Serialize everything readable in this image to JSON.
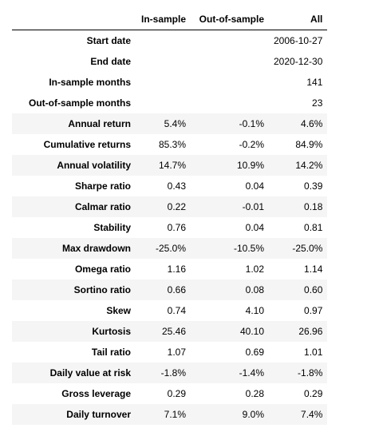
{
  "info": [
    {
      "label": "Start date",
      "value": "2006-10-27"
    },
    {
      "label": "End date",
      "value": "2020-12-30"
    },
    {
      "label": "In-sample months",
      "value": "141"
    },
    {
      "label": "Out-of-sample months",
      "value": "23"
    }
  ],
  "columns": [
    "In-sample",
    "Out-of-sample",
    "All"
  ],
  "rows": [
    {
      "label": "Annual return",
      "values": [
        "5.4%",
        "-0.1%",
        "4.6%"
      ]
    },
    {
      "label": "Cumulative returns",
      "values": [
        "85.3%",
        "-0.2%",
        "84.9%"
      ]
    },
    {
      "label": "Annual volatility",
      "values": [
        "14.7%",
        "10.9%",
        "14.2%"
      ]
    },
    {
      "label": "Sharpe ratio",
      "values": [
        "0.43",
        "0.04",
        "0.39"
      ]
    },
    {
      "label": "Calmar ratio",
      "values": [
        "0.22",
        "-0.01",
        "0.18"
      ]
    },
    {
      "label": "Stability",
      "values": [
        "0.76",
        "0.04",
        "0.81"
      ]
    },
    {
      "label": "Max drawdown",
      "values": [
        "-25.0%",
        "-10.5%",
        "-25.0%"
      ]
    },
    {
      "label": "Omega ratio",
      "values": [
        "1.16",
        "1.02",
        "1.14"
      ]
    },
    {
      "label": "Sortino ratio",
      "values": [
        "0.66",
        "0.08",
        "0.60"
      ]
    },
    {
      "label": "Skew",
      "values": [
        "0.74",
        "4.10",
        "0.97"
      ]
    },
    {
      "label": "Kurtosis",
      "values": [
        "25.46",
        "40.10",
        "26.96"
      ]
    },
    {
      "label": "Tail ratio",
      "values": [
        "1.07",
        "0.69",
        "1.01"
      ]
    },
    {
      "label": "Daily value at risk",
      "values": [
        "-1.8%",
        "-1.4%",
        "-1.8%"
      ]
    },
    {
      "label": "Gross leverage",
      "values": [
        "0.29",
        "0.28",
        "0.29"
      ]
    },
    {
      "label": "Daily turnover",
      "values": [
        "7.1%",
        "9.0%",
        "7.4%"
      ]
    }
  ]
}
